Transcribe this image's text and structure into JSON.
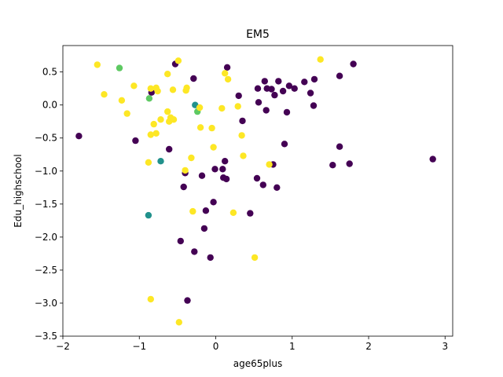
{
  "chart_data": {
    "type": "scatter",
    "title": "EM5",
    "xlabel": "age65plus",
    "ylabel": "Edu_highschool",
    "xlim": [
      -2.0,
      3.1
    ],
    "ylim": [
      -3.5,
      0.9
    ],
    "xticks": [
      -2,
      -1,
      0,
      1,
      2,
      3
    ],
    "xtick_labels": [
      "−2",
      "−1",
      "0",
      "1",
      "2",
      "3"
    ],
    "yticks": [
      -3.5,
      -3.0,
      -2.5,
      -2.0,
      -1.5,
      -1.0,
      -0.5,
      0.0,
      0.5
    ],
    "ytick_labels": [
      "−3.5",
      "−3.0",
      "−2.5",
      "−2.0",
      "−1.5",
      "−1.0",
      "−0.5",
      "0.0",
      "0.5"
    ],
    "grid": false,
    "legend": "none",
    "colors": {
      "purple": "#440154",
      "teal": "#21918c",
      "green": "#5ec962",
      "yellow": "#fde725"
    },
    "series": [
      {
        "color": "#440154",
        "points": [
          [
            -1.79,
            -0.47
          ],
          [
            -1.05,
            -0.54
          ],
          [
            -0.84,
            0.19
          ],
          [
            -0.61,
            -0.67
          ],
          [
            -0.53,
            0.62
          ],
          [
            -0.42,
            -1.24
          ],
          [
            -0.4,
            -1.03
          ],
          [
            -0.37,
            -2.96
          ],
          [
            -0.46,
            -2.06
          ],
          [
            -0.29,
            0.4
          ],
          [
            -0.28,
            -2.22
          ],
          [
            -0.18,
            -1.07
          ],
          [
            -0.15,
            -1.87
          ],
          [
            -0.13,
            -1.6
          ],
          [
            -0.07,
            -2.31
          ],
          [
            -0.03,
            -1.47
          ],
          [
            -0.01,
            -0.97
          ],
          [
            0.09,
            -0.97
          ],
          [
            0.12,
            -0.85
          ],
          [
            0.1,
            -1.1
          ],
          [
            0.14,
            -1.12
          ],
          [
            0.15,
            0.57
          ],
          [
            0.3,
            0.14
          ],
          [
            0.35,
            -0.24
          ],
          [
            0.45,
            -1.64
          ],
          [
            0.55,
            0.25
          ],
          [
            0.56,
            0.04
          ],
          [
            0.54,
            -1.11
          ],
          [
            0.62,
            -1.21
          ],
          [
            0.64,
            0.36
          ],
          [
            0.66,
            -0.08
          ],
          [
            0.67,
            0.25
          ],
          [
            0.73,
            0.24
          ],
          [
            0.75,
            -0.9
          ],
          [
            0.77,
            0.15
          ],
          [
            0.82,
            0.36
          ],
          [
            0.8,
            -1.25
          ],
          [
            0.88,
            0.21
          ],
          [
            0.9,
            -0.59
          ],
          [
            0.93,
            -0.11
          ],
          [
            0.96,
            0.29
          ],
          [
            1.03,
            0.25
          ],
          [
            1.16,
            0.35
          ],
          [
            1.24,
            0.18
          ],
          [
            1.28,
            -0.01
          ],
          [
            1.29,
            0.39
          ],
          [
            1.53,
            -0.91
          ],
          [
            1.62,
            0.44
          ],
          [
            1.62,
            -0.63
          ],
          [
            1.75,
            -0.89
          ],
          [
            1.8,
            0.62
          ],
          [
            2.84,
            -0.82
          ]
        ]
      },
      {
        "color": "#21918c",
        "points": [
          [
            -0.88,
            -1.67
          ],
          [
            -0.72,
            -0.85
          ],
          [
            -0.27,
            0.0
          ]
        ]
      },
      {
        "color": "#5ec962",
        "points": [
          [
            -1.26,
            0.56
          ],
          [
            -0.87,
            0.1
          ],
          [
            -0.24,
            -0.1
          ]
        ]
      },
      {
        "color": "#fde725",
        "points": [
          [
            -1.55,
            0.61
          ],
          [
            -1.46,
            0.16
          ],
          [
            -1.23,
            0.07
          ],
          [
            -1.16,
            -0.13
          ],
          [
            -1.07,
            0.29
          ],
          [
            -0.88,
            -0.87
          ],
          [
            -0.85,
            -0.45
          ],
          [
            -0.85,
            -2.94
          ],
          [
            -0.85,
            0.25
          ],
          [
            -0.81,
            -0.29
          ],
          [
            -0.78,
            0.26
          ],
          [
            -0.78,
            -0.43
          ],
          [
            -0.76,
            0.21
          ],
          [
            -0.72,
            -0.22
          ],
          [
            -0.63,
            0.47
          ],
          [
            -0.63,
            -0.1
          ],
          [
            -0.61,
            -0.25
          ],
          [
            -0.59,
            -0.19
          ],
          [
            -0.56,
            0.23
          ],
          [
            -0.55,
            -0.22
          ],
          [
            -0.49,
            0.67
          ],
          [
            -0.48,
            -3.29
          ],
          [
            -0.4,
            -0.99
          ],
          [
            -0.39,
            0.22
          ],
          [
            -0.38,
            0.26
          ],
          [
            -0.32,
            -0.8
          ],
          [
            -0.3,
            -1.61
          ],
          [
            -0.21,
            -0.04
          ],
          [
            -0.2,
            -0.34
          ],
          [
            -0.05,
            -0.35
          ],
          [
            -0.03,
            -0.64
          ],
          [
            0.08,
            -0.05
          ],
          [
            0.12,
            0.48
          ],
          [
            0.16,
            0.39
          ],
          [
            0.23,
            -1.63
          ],
          [
            0.29,
            -0.02
          ],
          [
            0.34,
            -0.46
          ],
          [
            0.36,
            -0.77
          ],
          [
            0.51,
            -2.31
          ],
          [
            0.7,
            -0.9
          ],
          [
            1.37,
            0.69
          ]
        ]
      }
    ]
  }
}
